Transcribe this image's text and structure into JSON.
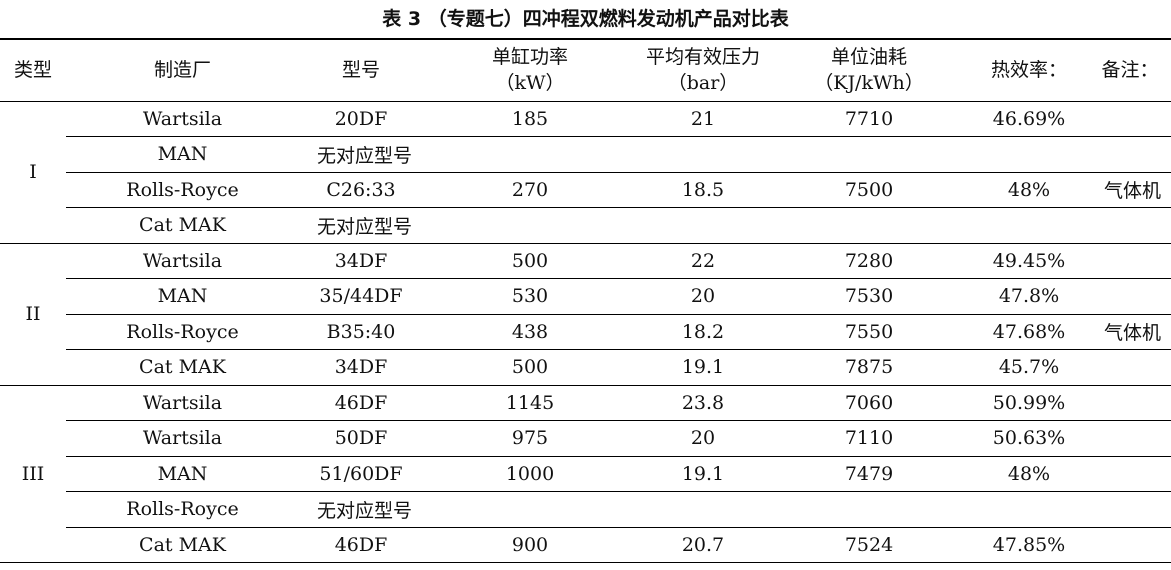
{
  "title": "表 3 （专题七）四冲程双燃料发动机产品对比表",
  "headers": {
    "type": "类型",
    "maker": "制造厂",
    "model": "型号",
    "power_l1": "单缸功率",
    "power_l2": "（kW）",
    "bmep_l1": "平均有效压力",
    "bmep_l2": "（bar）",
    "fuel_l1": "单位油耗",
    "fuel_l2": "（KJ/kWh）",
    "eff": "热效率：",
    "note": "备注："
  },
  "groups": [
    {
      "type": "I",
      "rows": [
        {
          "maker": "Wartsila",
          "model": "20DF",
          "power": "185",
          "bmep": "21",
          "fuel": "7710",
          "eff": "46.69%",
          "note": ""
        },
        {
          "maker": "MAN",
          "model": "无对应型号",
          "power": "",
          "bmep": "",
          "fuel": "",
          "eff": "",
          "note": ""
        },
        {
          "maker": "Rolls-Royce",
          "model": "C26:33",
          "power": "270",
          "bmep": "18.5",
          "fuel": "7500",
          "eff": "48%",
          "note": "气体机"
        },
        {
          "maker": "Cat MAK",
          "model": "无对应型号",
          "power": "",
          "bmep": "",
          "fuel": "",
          "eff": "",
          "note": ""
        }
      ]
    },
    {
      "type": "II",
      "rows": [
        {
          "maker": "Wartsila",
          "model": "34DF",
          "power": "500",
          "bmep": "22",
          "fuel": "7280",
          "eff": "49.45%",
          "note": ""
        },
        {
          "maker": "MAN",
          "model": "35/44DF",
          "power": "530",
          "bmep": "20",
          "fuel": "7530",
          "eff": "47.8%",
          "note": ""
        },
        {
          "maker": "Rolls-Royce",
          "model": "B35:40",
          "power": "438",
          "bmep": "18.2",
          "fuel": "7550",
          "eff": "47.68%",
          "note": "气体机"
        },
        {
          "maker": "Cat MAK",
          "model": "34DF",
          "power": "500",
          "bmep": "19.1",
          "fuel": "7875",
          "eff": "45.7%",
          "note": ""
        }
      ]
    },
    {
      "type": "III",
      "rows": [
        {
          "maker": "Wartsila",
          "model": "46DF",
          "power": "1145",
          "bmep": "23.8",
          "fuel": "7060",
          "eff": "50.99%",
          "note": ""
        },
        {
          "maker": "Wartsila",
          "model": "50DF",
          "power": "975",
          "bmep": "20",
          "fuel": "7110",
          "eff": "50.63%",
          "note": ""
        },
        {
          "maker": "MAN",
          "model": "51/60DF",
          "power": "1000",
          "bmep": "19.1",
          "fuel": "7479",
          "eff": "48%",
          "note": ""
        },
        {
          "maker": "Rolls-Royce",
          "model": "无对应型号",
          "power": "",
          "bmep": "",
          "fuel": "",
          "eff": "",
          "note": ""
        },
        {
          "maker": "Cat MAK",
          "model": "46DF",
          "power": "900",
          "bmep": "20.7",
          "fuel": "7524",
          "eff": "47.85%",
          "note": ""
        }
      ]
    }
  ]
}
